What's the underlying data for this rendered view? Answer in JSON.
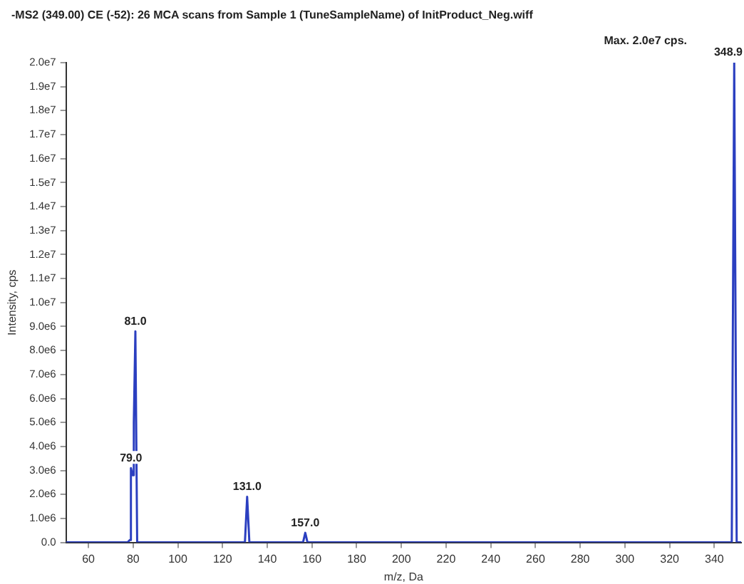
{
  "chart_data": {
    "type": "line",
    "title": "-MS2 (349.00) CE (-52): 26 MCA scans from Sample 1 (TuneSampleName) of InitProduct_Neg.wiff",
    "xlabel": "m/z, Da",
    "ylabel": "Intensity, cps",
    "x": [
      50,
      77.5,
      78.5,
      79,
      79.8,
      80.3,
      81,
      81.8,
      130,
      131,
      132,
      156,
      157,
      158,
      347.8,
      348.9,
      350,
      352
    ],
    "series": [
      {
        "color": "#2b3fc0",
        "values": [
          0,
          0,
          100000.0,
          3100000.0,
          2800000.0,
          5000000.0,
          8800000.0,
          0,
          0,
          1900000.0,
          0,
          0,
          400000.0,
          0,
          0,
          20000000.0,
          0,
          0
        ]
      }
    ],
    "xlim": [
      50,
      352
    ],
    "xticks": [
      60,
      80,
      100,
      120,
      140,
      160,
      180,
      200,
      220,
      240,
      260,
      280,
      300,
      320,
      340
    ],
    "ylim": [
      0,
      20000000.0
    ],
    "yticks": [
      {
        "value": 0,
        "label": "0.0"
      },
      {
        "value": 1000000.0,
        "label": "1.0e6"
      },
      {
        "value": 2000000.0,
        "label": "2.0e6"
      },
      {
        "value": 3000000.0,
        "label": "3.0e6"
      },
      {
        "value": 4000000.0,
        "label": "4.0e6"
      },
      {
        "value": 5000000.0,
        "label": "5.0e6"
      },
      {
        "value": 6000000.0,
        "label": "6.0e6"
      },
      {
        "value": 7000000.0,
        "label": "7.0e6"
      },
      {
        "value": 8000000.0,
        "label": "8.0e6"
      },
      {
        "value": 9000000.0,
        "label": "9.0e6"
      },
      {
        "value": 10000000.0,
        "label": "1.0e7"
      },
      {
        "value": 11000000.0,
        "label": "1.1e7"
      },
      {
        "value": 12000000.0,
        "label": "1.2e7"
      },
      {
        "value": 13000000.0,
        "label": "1.3e7"
      },
      {
        "value": 14000000.0,
        "label": "1.4e7"
      },
      {
        "value": 15000000.0,
        "label": "1.5e7"
      },
      {
        "value": 16000000.0,
        "label": "1.6e7"
      },
      {
        "value": 17000000.0,
        "label": "1.7e7"
      },
      {
        "value": 18000000.0,
        "label": "1.8e7"
      },
      {
        "value": 19000000.0,
        "label": "1.9e7"
      },
      {
        "value": 20000000.0,
        "label": "2.0e7"
      }
    ],
    "grid": false,
    "legend": false,
    "marker": "none",
    "annotations": [
      {
        "text": "79.0",
        "x": 79,
        "y": 3100000.0
      },
      {
        "text": "81.0",
        "x": 81,
        "y": 8800000.0
      },
      {
        "text": "131.0",
        "x": 131,
        "y": 1900000.0
      },
      {
        "text": "157.0",
        "x": 157,
        "y": 400000.0
      },
      {
        "text": "348.9",
        "x": 348.9,
        "y": 20000000.0
      },
      "Max. 2.0e7 cps."
    ]
  }
}
